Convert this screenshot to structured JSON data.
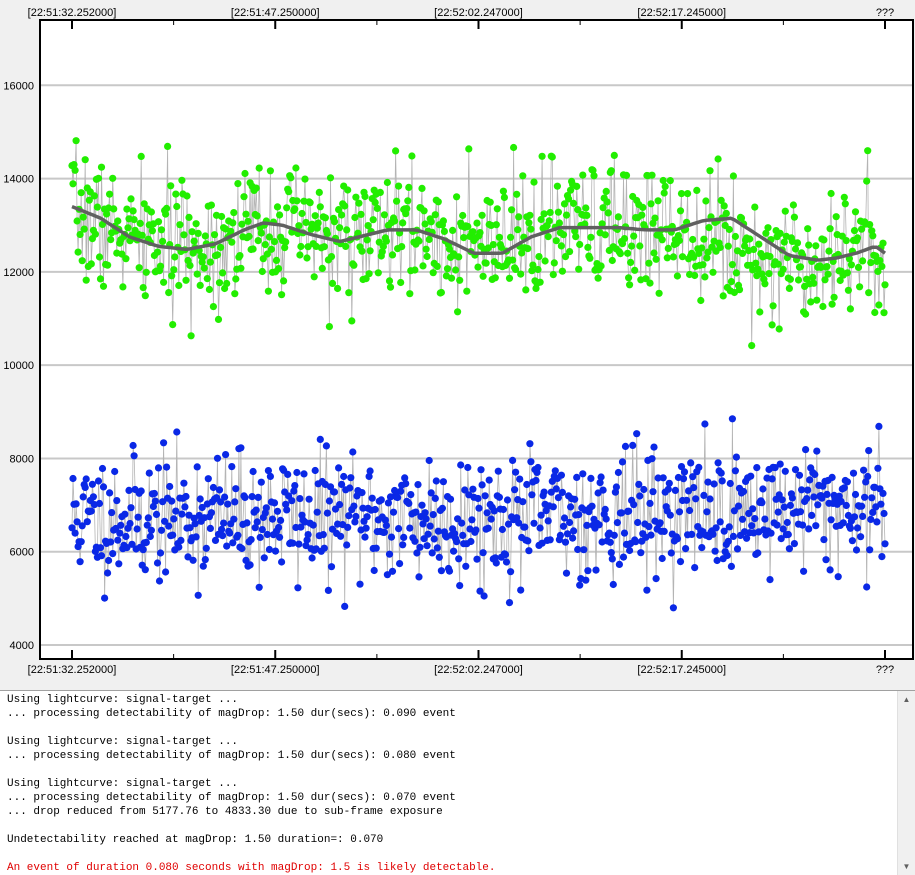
{
  "chart_data": {
    "type": "scatter",
    "title": "",
    "xlabel": "",
    "ylabel": "",
    "x_tick_labels": [
      "[22:51:32.252000]",
      "[22:51:47.250000]",
      "[22:52:02.247000]",
      "[22:52:17.245000]",
      "???"
    ],
    "y_ticks": [
      4000,
      6000,
      8000,
      10000,
      12000,
      14000,
      16000
    ],
    "ylim": [
      3700,
      17400
    ],
    "grid": "horizontal",
    "n_points": 800,
    "series": [
      {
        "kind": "points",
        "color": "#22ee00",
        "seed": 7,
        "baseline_knots": [
          [
            0,
            13300
          ],
          [
            60,
            12700
          ],
          [
            130,
            12500
          ],
          [
            200,
            13000
          ],
          [
            280,
            12700
          ],
          [
            360,
            12900
          ],
          [
            440,
            12400
          ],
          [
            500,
            12900
          ],
          [
            580,
            12900
          ],
          [
            640,
            13000
          ],
          [
            690,
            12600
          ],
          [
            730,
            12300
          ],
          [
            770,
            12300
          ],
          [
            810,
            12600
          ],
          [
            850,
            12400
          ]
        ],
        "noise_sd": 900,
        "range": [
          9400,
          16700
        ]
      },
      {
        "kind": "points",
        "color": "#0a28e6",
        "seed": 11,
        "baseline_knots": [
          [
            0,
            6700
          ],
          [
            200,
            6750
          ],
          [
            400,
            6700
          ],
          [
            600,
            6800
          ],
          [
            800,
            7000
          ],
          [
            850,
            6900
          ]
        ],
        "noise_sd": 900,
        "range": [
          4300,
          9050
        ]
      },
      {
        "kind": "smoothed-line",
        "color": "#606060",
        "knots": [
          [
            0,
            13400
          ],
          [
            30,
            13150
          ],
          [
            60,
            12750
          ],
          [
            90,
            12550
          ],
          [
            120,
            12480
          ],
          [
            150,
            12600
          ],
          [
            180,
            12900
          ],
          [
            200,
            13050
          ],
          [
            220,
            13000
          ],
          [
            250,
            12800
          ],
          [
            280,
            12650
          ],
          [
            300,
            12750
          ],
          [
            330,
            12900
          ],
          [
            360,
            12900
          ],
          [
            390,
            12700
          ],
          [
            420,
            12400
          ],
          [
            450,
            12400
          ],
          [
            480,
            12750
          ],
          [
            510,
            12950
          ],
          [
            540,
            12950
          ],
          [
            570,
            12950
          ],
          [
            600,
            12900
          ],
          [
            630,
            12900
          ],
          [
            660,
            13100
          ],
          [
            690,
            13150
          ],
          [
            720,
            12750
          ],
          [
            750,
            12350
          ],
          [
            780,
            12250
          ],
          [
            800,
            12300
          ],
          [
            820,
            12400
          ],
          [
            840,
            12550
          ],
          [
            850,
            12400
          ]
        ]
      }
    ]
  },
  "log": {
    "lines": [
      {
        "text": "Using lightcurve: signal-target ...",
        "alert": false
      },
      {
        "text": "... processing detectability of magDrop: 1.50 dur(secs): 0.090 event",
        "alert": false
      },
      {
        "text": "",
        "alert": false
      },
      {
        "text": "Using lightcurve: signal-target ...",
        "alert": false
      },
      {
        "text": "... processing detectability of magDrop: 1.50 dur(secs): 0.080 event",
        "alert": false
      },
      {
        "text": "",
        "alert": false
      },
      {
        "text": "Using lightcurve: signal-target ...",
        "alert": false
      },
      {
        "text": "... processing detectability of magDrop: 1.50 dur(secs): 0.070 event",
        "alert": false
      },
      {
        "text": "... drop reduced from 5177.76 to 4833.30 due to sub-frame exposure",
        "alert": false
      },
      {
        "text": "",
        "alert": false
      },
      {
        "text": "Undetectability reached at magDrop: 1.50 duration=: 0.070",
        "alert": false
      },
      {
        "text": "",
        "alert": false
      },
      {
        "text": "An event of duration 0.080 seconds with magDrop: 1.5 is likely detectable.",
        "alert": true
      }
    ]
  }
}
